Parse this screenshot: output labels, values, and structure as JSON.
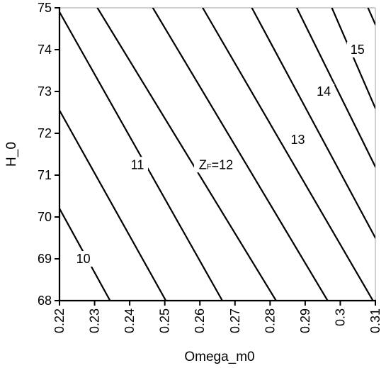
{
  "chart_data": {
    "type": "contour",
    "xlabel": "Omega_m0",
    "ylabel": "H_0",
    "xlim": [
      0.22,
      0.31
    ],
    "ylim": [
      68,
      75
    ],
    "x_ticks": [
      0.22,
      0.23,
      0.24,
      0.25,
      0.26,
      0.27,
      0.28,
      0.29,
      0.3,
      0.31
    ],
    "x_tick_labels": [
      "0.22",
      "0.23",
      "0.24",
      "0.25",
      "0.26",
      "0.27",
      "0.28",
      "0.29",
      "0.3",
      "0.31"
    ],
    "y_ticks": [
      68,
      69,
      70,
      71,
      72,
      73,
      74,
      75
    ],
    "y_tick_labels": [
      "68",
      "69",
      "70",
      "71",
      "72",
      "73",
      "74",
      "75"
    ],
    "contour_label_prefix": "Z",
    "contour_label_sub": "F",
    "contours": [
      {
        "points": [
          [
            0.22,
            70.2
          ],
          [
            0.2344,
            68.0
          ]
        ]
      },
      {
        "label": "10",
        "label_at": [
          0.2268,
          69.0
        ],
        "points": [
          [
            0.22,
            72.55
          ],
          [
            0.2503,
            68.0
          ]
        ]
      },
      {
        "points": [
          [
            0.22,
            74.9
          ],
          [
            0.2664,
            68.0
          ]
        ]
      },
      {
        "label": "11",
        "label_at": [
          0.2422,
          71.25
        ],
        "points": [
          [
            0.2308,
            75.0
          ],
          [
            0.2817,
            68.0
          ]
        ]
      },
      {
        "points": [
          [
            0.2466,
            75.0
          ],
          [
            0.2964,
            68.0
          ]
        ]
      },
      {
        "label": "12",
        "label_at": [
          0.2646,
          71.25
        ],
        "label_prefix": true,
        "points": [
          [
            0.2608,
            75.0
          ],
          [
            0.31,
            67.9
          ]
        ]
      },
      {
        "points": [
          [
            0.2748,
            75.0
          ],
          [
            0.31,
            69.5
          ]
        ]
      },
      {
        "label": "13",
        "label_at": [
          0.2879,
          71.85
        ],
        "points": [
          [
            0.2876,
            75.0
          ],
          [
            0.31,
            71.2
          ]
        ]
      },
      {
        "label": "14",
        "label_at": [
          0.2953,
          73.0
        ],
        "points": [
          [
            0.2976,
            75.0
          ],
          [
            0.31,
            72.6
          ]
        ]
      },
      {
        "label": "15",
        "label_at": [
          0.3049,
          74.0
        ],
        "points": [
          [
            0.3079,
            75.0
          ],
          [
            0.31,
            74.6
          ]
        ]
      }
    ],
    "grid": false
  }
}
